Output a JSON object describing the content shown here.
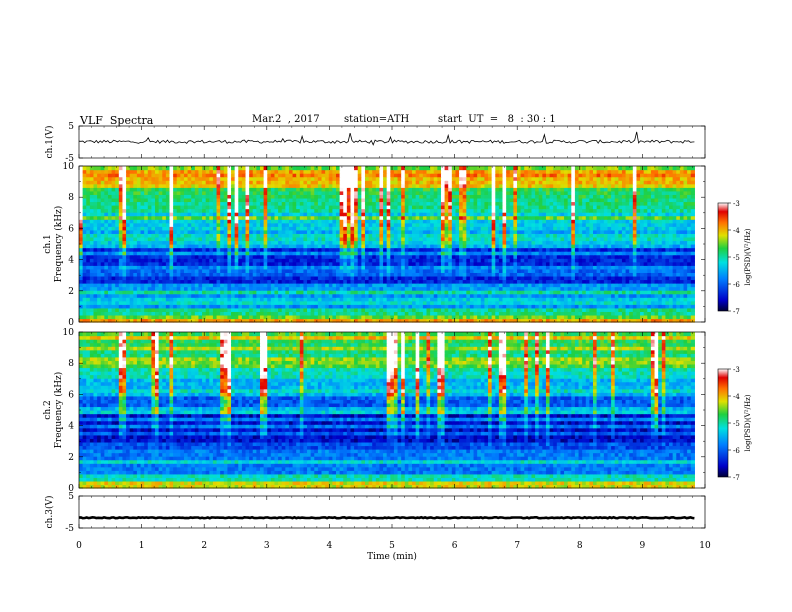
{
  "header": {
    "title": "VLF  Spectra",
    "date": "Mar.2  , 2017",
    "station": "station=ATH",
    "start": "start  UT  =   8  : 30 : 1"
  },
  "chart_data": [
    {
      "type": "line",
      "ylabel": "ch.1(V)",
      "ylim": [
        -5,
        5
      ],
      "yticks": [
        "5",
        "-5"
      ],
      "xlim": [
        0,
        10
      ],
      "data_end_min": 9.83,
      "level": 0.1,
      "noise_amplitude": 0.5
    },
    {
      "type": "heatmap",
      "ylabel": "ch.1",
      "ylabel2": "Frequency  (kHz)",
      "ylim": [
        0,
        10
      ],
      "yticks": [
        "0",
        "2",
        "4",
        "6",
        "8",
        "10"
      ],
      "xlim": [
        0,
        10
      ],
      "data_end_min": 9.83,
      "colorbar": {
        "label": "log(PSD)(V²/Hz)",
        "ticks": [
          "-3",
          "-4",
          "-5",
          "-6",
          "-7"
        ],
        "range": [
          -7,
          -3
        ]
      }
    },
    {
      "type": "heatmap",
      "ylabel": "ch.2",
      "ylabel2": "Frequency  (kHz)",
      "ylim": [
        0,
        10
      ],
      "yticks": [
        "0",
        "2",
        "4",
        "6",
        "8",
        "10"
      ],
      "xlim": [
        0,
        10
      ],
      "data_end_min": 9.83,
      "colorbar": {
        "label": "log(PSD)(V²/Hz)",
        "ticks": [
          "-3",
          "-4",
          "-5",
          "-6",
          "-7"
        ],
        "range": [
          -7,
          -3
        ]
      }
    },
    {
      "type": "line",
      "ylabel": "ch.3(V)",
      "ylim": [
        -5,
        5
      ],
      "yticks": [
        "5",
        "-5"
      ],
      "xlim": [
        0,
        10
      ],
      "data_end_min": 9.83,
      "level": -1.8,
      "noise_amplitude": 0.15
    }
  ],
  "xaxis": {
    "label": "Time  (min)",
    "ticks": [
      "0",
      "1",
      "2",
      "3",
      "4",
      "5",
      "6",
      "7",
      "8",
      "9",
      "10"
    ]
  }
}
